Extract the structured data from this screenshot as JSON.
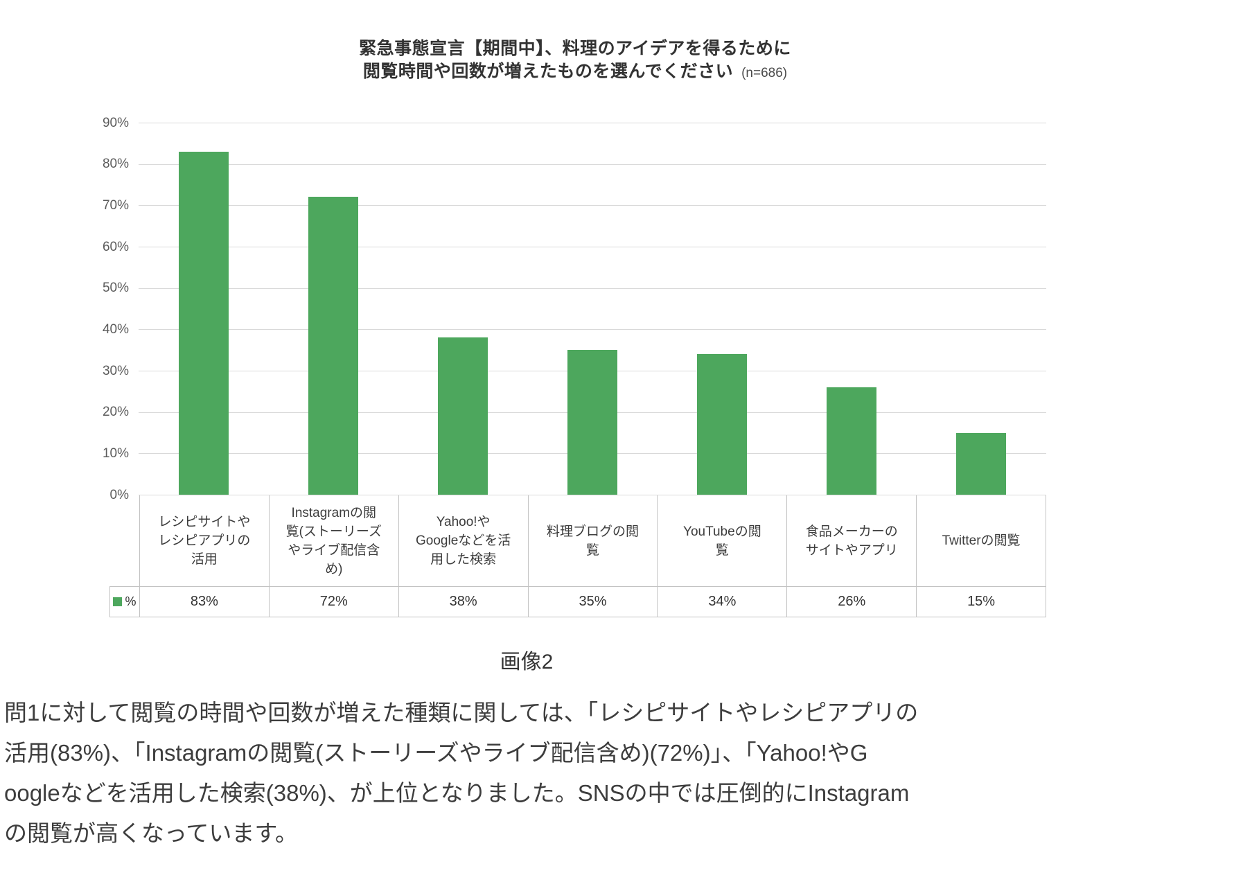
{
  "page": {
    "caption": "画像2",
    "paragraph_lines": [
      "問1に対して閲覧の時間や回数が増えた種類に関しては、「レシピサイトやレシピアプリの",
      "活用(83%)、「Instagramの閲覧(ストーリーズやライブ配信含め)(72%)」、「Yahoo!やG",
      "oogleなどを活用した検索(38%)、が上位となりました。SNSの中では圧倒的にInstagram",
      "の閲覧が高くなっています。"
    ]
  },
  "chart_data": {
    "type": "bar",
    "title_line1": "緊急事態宣言【期間中】、料理のアイデアを得るために",
    "title_line2": "閲覧時間や回数が増えたものを選んでください",
    "sample_note": "(n=686)",
    "categories": [
      "レシピサイトや\nレシピアプリの\n活用",
      "Instagramの閲\n覧(ストーリーズ\nやライブ配信含\nめ)",
      "Yahoo!や\nGoogleなどを活\n用した検索",
      "料理ブログの閲\n覧",
      "YouTubeの閲\n覧",
      "食品メーカーの\nサイトやアプリ",
      "Twitterの閲覧"
    ],
    "values": [
      83,
      72,
      38,
      35,
      34,
      26,
      15
    ],
    "value_labels": [
      "83%",
      "72%",
      "38%",
      "35%",
      "34%",
      "26%",
      "15%"
    ],
    "legend_label": "%",
    "y_ticks": [
      "90%",
      "80%",
      "70%",
      "60%",
      "50%",
      "40%",
      "30%",
      "20%",
      "10%",
      "0%"
    ],
    "ylim": [
      0,
      90
    ],
    "grid": true,
    "legend_position": "table-left",
    "xlabel": "",
    "ylabel": "",
    "bar_color": "#4da75d",
    "gridline_color": "#d9d9d9"
  }
}
